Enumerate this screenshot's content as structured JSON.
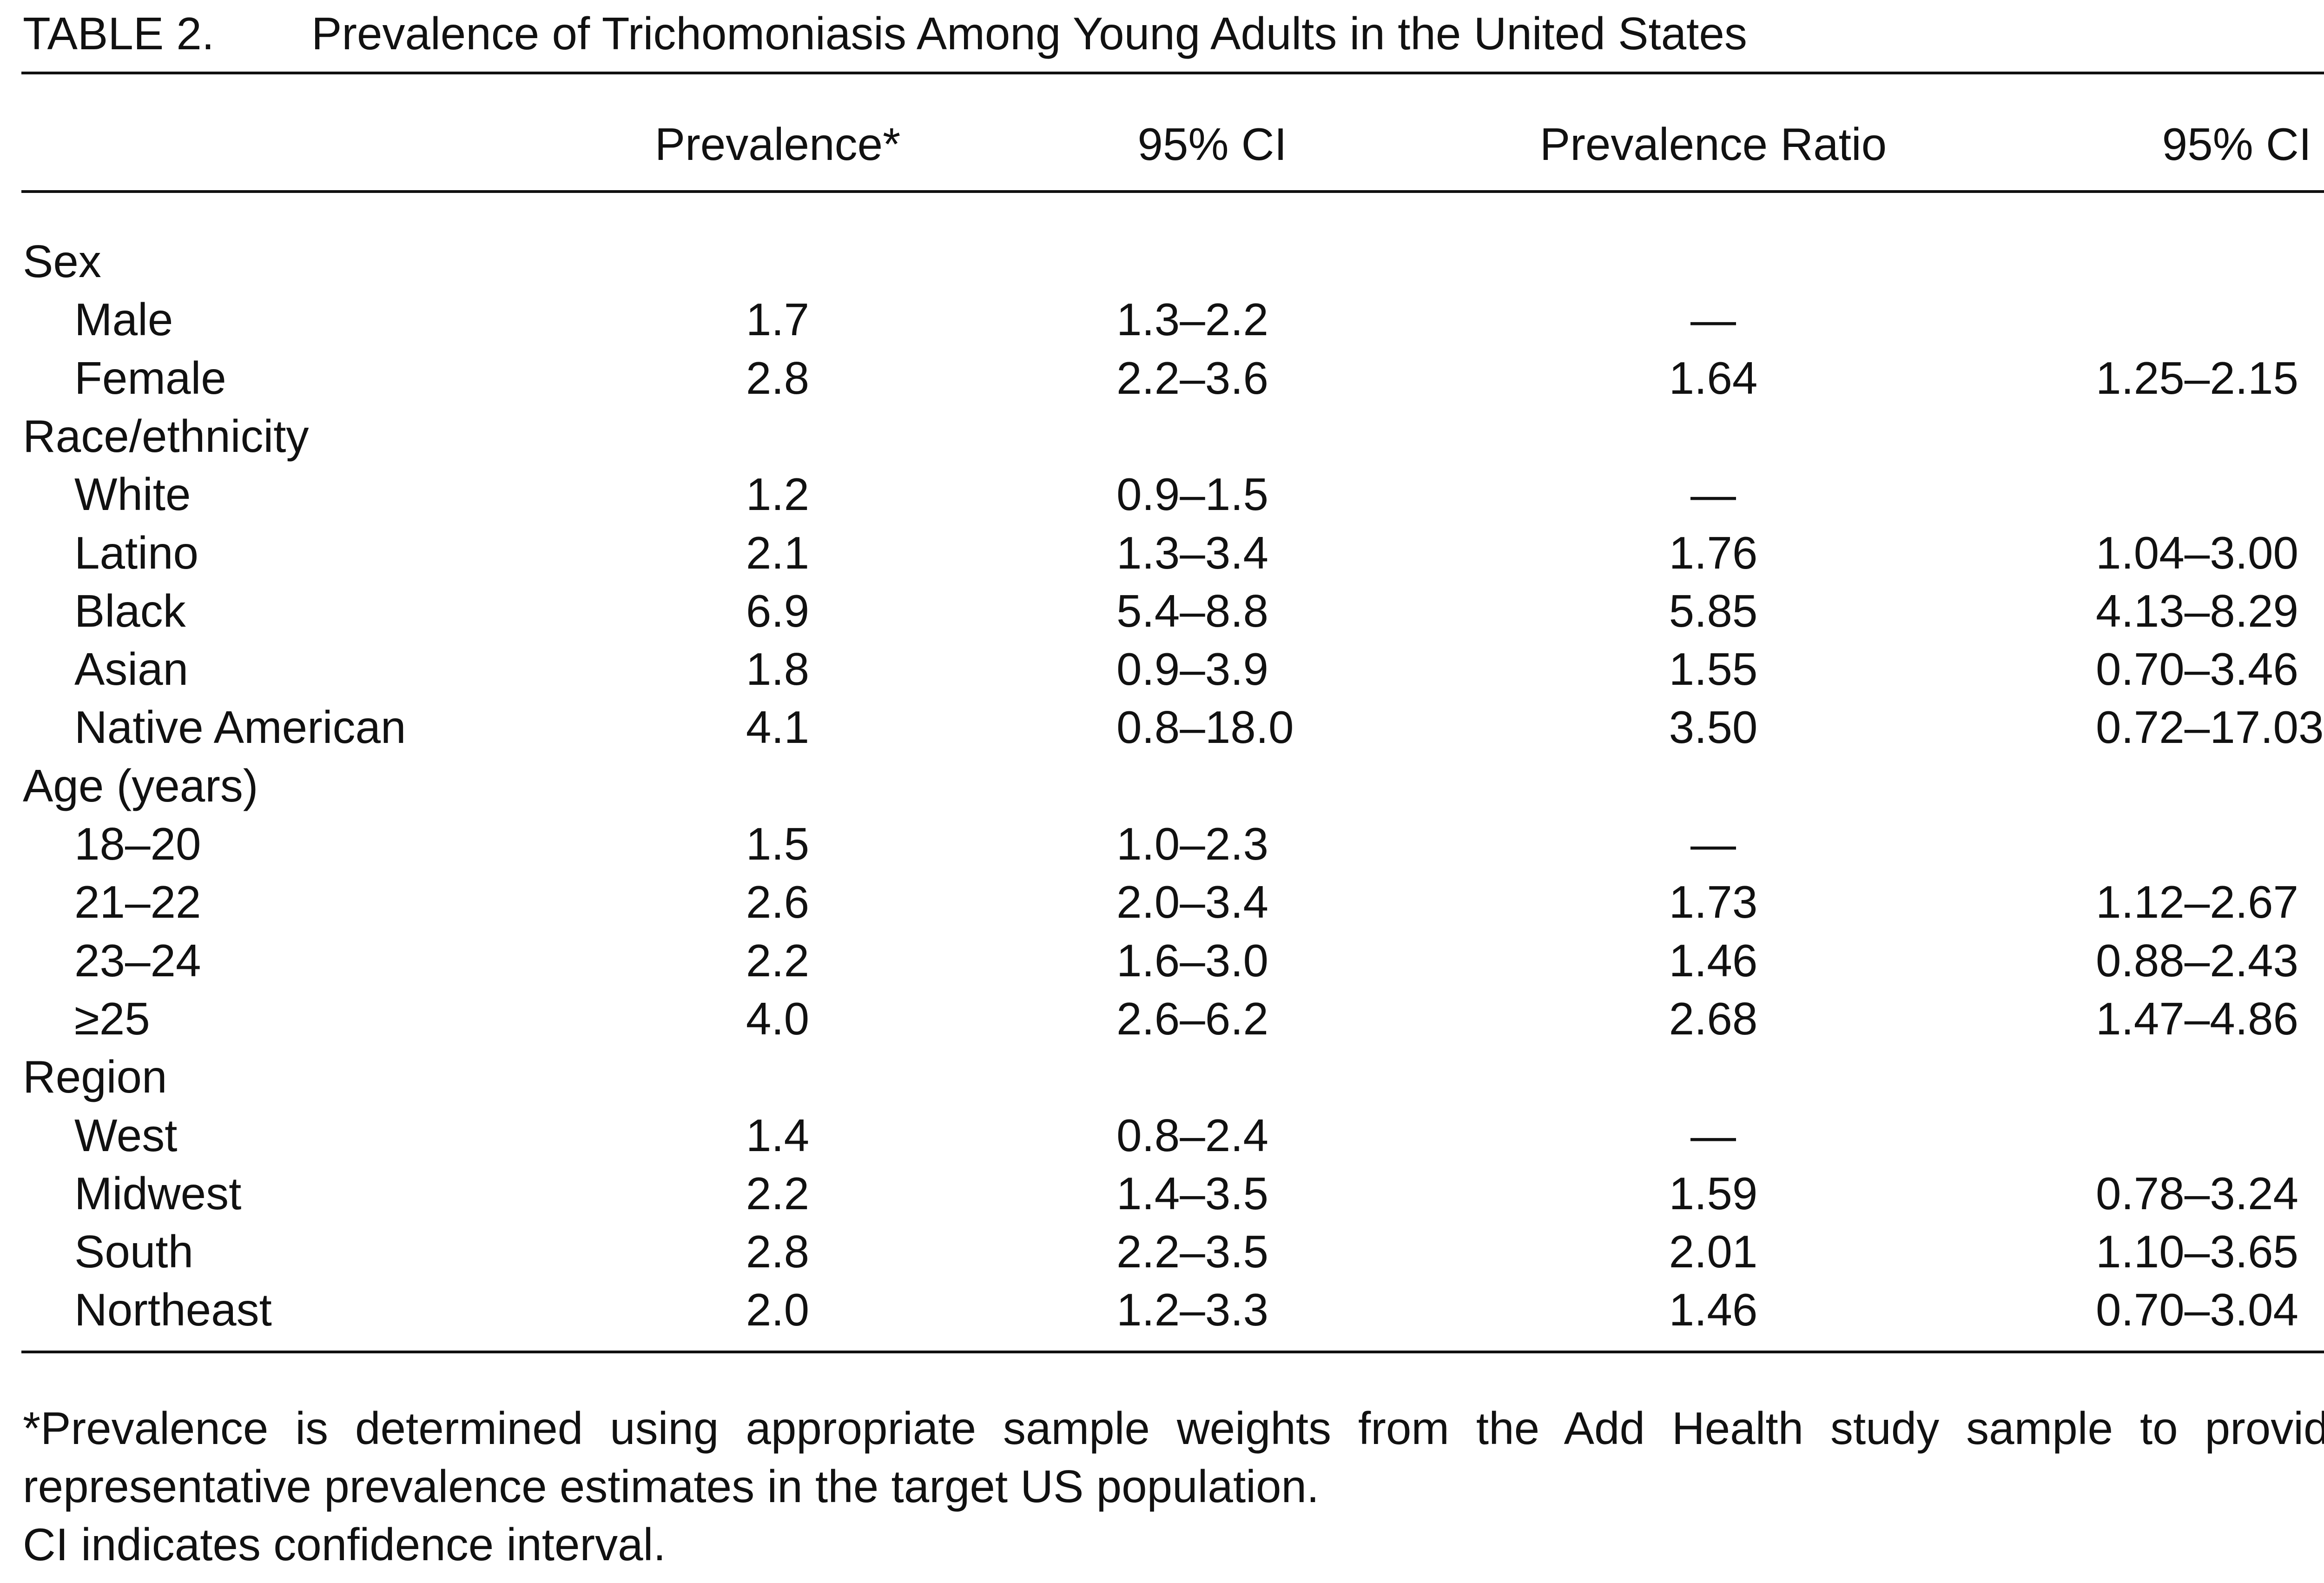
{
  "title": {
    "label": "TABLE 2.",
    "text": "Prevalence of Trichomoniasis Among Young Adults in the United States"
  },
  "table": {
    "columns": [
      "Prevalence*",
      "95% CI",
      "Prevalence Ratio",
      "95% CI"
    ],
    "groups": [
      {
        "label": "Sex",
        "rows": [
          {
            "label": "Male",
            "prevalence": "1.7",
            "ci": "1.3–2.2",
            "ratio": "—"
          },
          {
            "label": "Female",
            "prevalence": "2.8",
            "ci": "2.2–3.6",
            "ratio": "1.64",
            "ratio_ci": "1.25–2.15"
          }
        ]
      },
      {
        "label": "Race/ethnicity",
        "rows": [
          {
            "label": "White",
            "prevalence": "1.2",
            "ci": "0.9–1.5",
            "ratio": "—"
          },
          {
            "label": "Latino",
            "prevalence": "2.1",
            "ci": "1.3–3.4",
            "ratio": "1.76",
            "ratio_ci": "1.04–3.00"
          },
          {
            "label": "Black",
            "prevalence": "6.9",
            "ci": "5.4–8.8",
            "ratio": "5.85",
            "ratio_ci": "4.13–8.29"
          },
          {
            "label": "Asian",
            "prevalence": "1.8",
            "ci": "0.9–3.9",
            "ratio": "1.55",
            "ratio_ci": "0.70–3.46"
          },
          {
            "label": "Native American",
            "prevalence": "4.1",
            "ci": "0.8–18.0",
            "ratio": "3.50",
            "ratio_ci": "0.72–17.03"
          }
        ]
      },
      {
        "label": "Age (years)",
        "rows": [
          {
            "label": "18–20",
            "prevalence": "1.5",
            "ci": "1.0–2.3",
            "ratio": "—"
          },
          {
            "label": "21–22",
            "prevalence": "2.6",
            "ci": "2.0–3.4",
            "ratio": "1.73",
            "ratio_ci": "1.12–2.67"
          },
          {
            "label": "23–24",
            "prevalence": "2.2",
            "ci": "1.6–3.0",
            "ratio": "1.46",
            "ratio_ci": "0.88–2.43"
          },
          {
            "label": "≥25",
            "prevalence": "4.0",
            "ci": "2.6–6.2",
            "ratio": "2.68",
            "ratio_ci": "1.47–4.86"
          }
        ]
      },
      {
        "label": "Region",
        "rows": [
          {
            "label": "West",
            "prevalence": "1.4",
            "ci": "0.8–2.4",
            "ratio": "—"
          },
          {
            "label": "Midwest",
            "prevalence": "2.2",
            "ci": "1.4–3.5",
            "ratio": "1.59",
            "ratio_ci": "0.78–3.24"
          },
          {
            "label": "South",
            "prevalence": "2.8",
            "ci": "2.2–3.5",
            "ratio": "2.01",
            "ratio_ci": "1.10–3.65"
          },
          {
            "label": "Northeast",
            "prevalence": "2.0",
            "ci": "1.2–3.3",
            "ratio": "1.46",
            "ratio_ci": "0.70–3.04"
          }
        ]
      }
    ]
  },
  "footnotes": [
    "*Prevalence is determined using appropriate sample weights from the Add Health study sample to provide representative prevalence estimates in the target US population.",
    "CI indicates confidence interval."
  ]
}
